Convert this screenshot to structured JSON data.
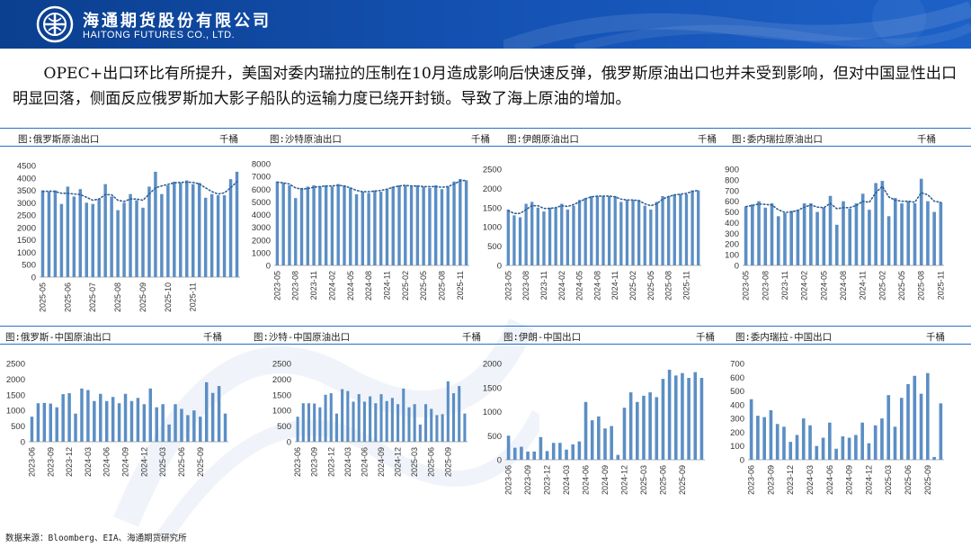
{
  "header": {
    "brand_cn": "海通期货股份有限公司",
    "brand_en": "HAITONG FUTURES CO., LTD."
  },
  "summary": "OPEC+出口环比有所提升，美国对委内瑞拉的压制在10月造成影响后快速反弹，俄罗斯原油出口也并未受到影响，但对中国显性出口明显回落，侧面反应俄罗斯加大影子船队的运输力度已绕开封锁。导致了海上原油的增加。",
  "source": "数据来源：Bloomberg、EIA、海通期货研究所",
  "colors": {
    "bar": "#5b8ec4",
    "trend": "#2f5f99",
    "rule": "#2a6fc9"
  },
  "chart_data": [
    {
      "id": "russia-export",
      "type": "bar",
      "title": "图:俄罗斯原油出口",
      "unit": "千桶",
      "ylim": [
        0,
        4500
      ],
      "yticks": [
        0,
        500,
        1000,
        1500,
        2000,
        2500,
        3000,
        3500,
        4000,
        4500
      ],
      "xticks": [
        "2025-05",
        "2025-06",
        "2025-07",
        "2025-08",
        "2025-09",
        "2025-10",
        "2025-11"
      ],
      "tick_at": [
        0,
        4,
        8,
        12,
        16,
        20,
        24
      ],
      "values": [
        3500,
        3450,
        3500,
        2950,
        3650,
        3250,
        3550,
        3000,
        2950,
        3150,
        3750,
        3250,
        2700,
        3000,
        3350,
        3100,
        2800,
        3650,
        4250,
        3350,
        3700,
        3850,
        3800,
        3900,
        3750,
        3800,
        3200,
        3350,
        3300,
        3300,
        3950,
        4250
      ],
      "trend": [
        3450,
        3470,
        3450,
        3380,
        3380,
        3350,
        3330,
        3220,
        3100,
        3150,
        3330,
        3320,
        3100,
        3050,
        3150,
        3150,
        3100,
        3350,
        3600,
        3680,
        3740,
        3800,
        3820,
        3830,
        3820,
        3760,
        3600,
        3450,
        3350,
        3400,
        3600,
        3850
      ]
    },
    {
      "id": "saudi-export",
      "type": "bar",
      "title": "图:沙特原油出口",
      "unit": "千桶",
      "ylim": [
        0,
        8000
      ],
      "yticks": [
        0,
        1000,
        2000,
        3000,
        4000,
        5000,
        6000,
        7000,
        8000
      ],
      "xticks": [
        "2023-05",
        "2023-08",
        "2023-11",
        "2024-02",
        "2024-05",
        "2024-08",
        "2024-11",
        "2025-02",
        "2025-05",
        "2025-08",
        "2025-11"
      ],
      "tick_at": [
        0,
        3,
        6,
        9,
        12,
        15,
        18,
        21,
        24,
        27,
        30
      ],
      "values": [
        6600,
        6500,
        6300,
        5300,
        6100,
        6200,
        6300,
        6200,
        6300,
        6200,
        6400,
        6300,
        6100,
        5600,
        5800,
        5700,
        5900,
        5800,
        6000,
        6200,
        6300,
        6300,
        6200,
        6300,
        6200,
        6100,
        6300,
        6000,
        6200,
        6600,
        6800,
        6700
      ],
      "trend": [
        6550,
        6500,
        6400,
        6100,
        6000,
        6050,
        6150,
        6200,
        6250,
        6250,
        6300,
        6250,
        6100,
        5900,
        5800,
        5800,
        5850,
        5900,
        6000,
        6150,
        6250,
        6300,
        6250,
        6250,
        6200,
        6200,
        6200,
        6150,
        6200,
        6400,
        6650,
        6700
      ]
    },
    {
      "id": "iran-export",
      "type": "bar",
      "title": "图:伊朗原油出口",
      "unit": "千桶",
      "ylim": [
        0,
        2500
      ],
      "yticks": [
        0,
        500,
        1000,
        1500,
        2000,
        2500
      ],
      "xticks": [
        "2023-05",
        "2023-08",
        "2023-11",
        "2024-02",
        "2024-05",
        "2024-08",
        "2024-11",
        "2025-02",
        "2025-05",
        "2025-08",
        "2025-11"
      ],
      "tick_at": [
        0,
        3,
        6,
        9,
        12,
        15,
        18,
        21,
        24,
        27,
        30
      ],
      "values": [
        1450,
        1300,
        1250,
        1600,
        1650,
        1500,
        1400,
        1500,
        1500,
        1600,
        1450,
        1550,
        1700,
        1750,
        1800,
        1800,
        1800,
        1800,
        1800,
        1650,
        1700,
        1700,
        1700,
        1550,
        1450,
        1650,
        1800,
        1800,
        1850,
        1850,
        1850,
        1950,
        1950
      ],
      "trend": [
        1420,
        1350,
        1350,
        1450,
        1550,
        1550,
        1480,
        1480,
        1500,
        1550,
        1530,
        1580,
        1650,
        1730,
        1780,
        1800,
        1800,
        1800,
        1780,
        1720,
        1700,
        1700,
        1680,
        1600,
        1550,
        1600,
        1720,
        1790,
        1830,
        1850,
        1870,
        1920,
        1950
      ]
    },
    {
      "id": "venezuela-export",
      "type": "bar",
      "title": "图:委内瑞拉原油出口",
      "unit": "千桶",
      "ylim": [
        0,
        900
      ],
      "yticks": [
        0,
        100,
        200,
        300,
        400,
        500,
        600,
        700,
        800,
        900
      ],
      "xticks": [
        "2023-05",
        "2023-08",
        "2023-11",
        "2024-02",
        "2024-05",
        "2024-08",
        "2024-11",
        "2025-02",
        "2025-05",
        "2025-08",
        "2025-11"
      ],
      "tick_at": [
        0,
        3,
        6,
        9,
        12,
        15,
        18,
        21,
        24,
        27,
        30
      ],
      "values": [
        550,
        570,
        600,
        540,
        580,
        460,
        490,
        510,
        520,
        580,
        580,
        500,
        540,
        650,
        380,
        600,
        530,
        580,
        670,
        520,
        770,
        790,
        460,
        630,
        580,
        600,
        580,
        810,
        600,
        500,
        590
      ],
      "trend": [
        550,
        560,
        575,
        570,
        565,
        520,
        495,
        500,
        515,
        545,
        565,
        545,
        540,
        580,
        530,
        540,
        540,
        560,
        600,
        590,
        680,
        740,
        640,
        610,
        600,
        600,
        590,
        680,
        660,
        600,
        590
      ]
    },
    {
      "id": "russia-china",
      "type": "bar",
      "title": "图:俄罗斯-中国原油出口",
      "unit": "千桶",
      "ylim": [
        0,
        2500
      ],
      "yticks": [
        0,
        500,
        1000,
        1500,
        2000,
        2500
      ],
      "xticks": [
        "2023-06",
        "2023-09",
        "2023-12",
        "2024-03",
        "2024-06",
        "2024-09",
        "2024-12",
        "2025-03",
        "2025-06",
        "2025-09"
      ],
      "tick_at": [
        0,
        3,
        6,
        9,
        12,
        15,
        18,
        21,
        24,
        27
      ],
      "values": [
        800,
        1230,
        1240,
        1220,
        1100,
        1520,
        1550,
        900,
        1700,
        1650,
        1300,
        1530,
        1300,
        1430,
        1230,
        1530,
        1300,
        1400,
        1200,
        1700,
        1100,
        1200,
        550,
        1200,
        1050,
        850,
        1000,
        800,
        1900,
        1560,
        1780,
        900
      ]
    },
    {
      "id": "saudi-china",
      "type": "bar",
      "title": "图:沙特-中国原油出口",
      "unit": "千桶",
      "ylim": [
        0,
        2500
      ],
      "yticks": [
        0,
        500,
        1000,
        1500,
        2000,
        2500
      ],
      "xticks": [
        "2023-06",
        "2023-09",
        "2023-12",
        "2024-03",
        "2024-06",
        "2024-09",
        "2024-12",
        "2025-03",
        "2025-06",
        "2025-09"
      ],
      "tick_at": [
        0,
        3,
        6,
        9,
        12,
        15,
        18,
        21,
        24,
        27
      ],
      "values": [
        800,
        1230,
        1230,
        1220,
        1100,
        1500,
        1550,
        900,
        1680,
        1620,
        1280,
        1520,
        1280,
        1450,
        1230,
        1520,
        1300,
        1400,
        1200,
        1700,
        1100,
        1200,
        550,
        1200,
        1050,
        850,
        880,
        1930,
        1550,
        1780,
        900
      ]
    },
    {
      "id": "iran-china",
      "type": "bar",
      "title": "图:伊朗-中国出口",
      "unit": "千桶",
      "ylim": [
        0,
        2000
      ],
      "yticks": [
        0,
        500,
        1000,
        1500,
        2000
      ],
      "xticks": [
        "2023-06",
        "2023-09",
        "2023-12",
        "2024-03",
        "2024-06",
        "2024-09",
        "2024-12",
        "2025-03",
        "2025-06",
        "2025-09"
      ],
      "tick_at": [
        0,
        3,
        6,
        9,
        12,
        15,
        18,
        21,
        24,
        27
      ],
      "values": [
        500,
        250,
        270,
        170,
        170,
        470,
        180,
        350,
        350,
        210,
        320,
        380,
        1200,
        820,
        900,
        650,
        700,
        100,
        1080,
        1400,
        1200,
        1330,
        1400,
        1300,
        1680,
        1870,
        1750,
        1800,
        1700,
        1820,
        1700
      ]
    },
    {
      "id": "venezuela-china",
      "type": "bar",
      "title": "图:委内瑞拉-中国出口",
      "unit": "千桶",
      "ylim": [
        0,
        700
      ],
      "yticks": [
        0,
        100,
        200,
        300,
        400,
        500,
        600,
        700
      ],
      "xticks": [
        "2023-06",
        "2023-09",
        "2023-12",
        "2024-03",
        "2024-06",
        "2024-09",
        "2024-12",
        "2025-03",
        "2025-06",
        "2025-09"
      ],
      "tick_at": [
        0,
        3,
        6,
        9,
        12,
        15,
        18,
        21,
        24,
        27
      ],
      "values": [
        440,
        320,
        310,
        360,
        260,
        240,
        130,
        180,
        300,
        250,
        100,
        160,
        270,
        80,
        170,
        160,
        180,
        270,
        120,
        250,
        300,
        470,
        240,
        450,
        550,
        610,
        480,
        630,
        20,
        410
      ]
    }
  ]
}
